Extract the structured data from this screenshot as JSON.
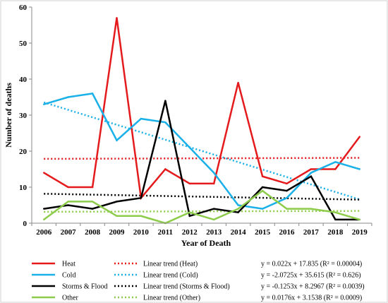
{
  "chart_data": {
    "type": "line",
    "title": "",
    "xlabel": "Year of Death",
    "ylabel": "Number of deaths",
    "x": [
      2006,
      2007,
      2008,
      2009,
      2010,
      2011,
      2012,
      2013,
      2014,
      2015,
      2016,
      2017,
      2018,
      2019
    ],
    "ylim": [
      0,
      60
    ],
    "yticks": [
      0,
      10,
      20,
      30,
      40,
      50,
      60
    ],
    "grid": false,
    "legend_position": "bottom",
    "series": [
      {
        "name": "Heat",
        "color": "#e41a1c",
        "values": [
          14,
          10,
          10,
          57,
          7,
          15,
          11,
          11,
          39,
          13,
          11,
          15,
          15,
          24
        ]
      },
      {
        "name": "Cold",
        "color": "#1ab0e8",
        "values": [
          33,
          35,
          36,
          23,
          29,
          28,
          21,
          14,
          5,
          4,
          7,
          14,
          17,
          15
        ]
      },
      {
        "name": "Storms & Flood",
        "color": "#000000",
        "values": [
          4,
          5,
          4,
          6,
          7,
          34,
          2,
          4,
          3,
          10,
          9,
          13,
          1,
          1
        ]
      },
      {
        "name": "Other",
        "color": "#8ccc4a",
        "values": [
          1,
          6,
          6,
          2,
          2,
          0,
          3,
          1,
          4,
          9,
          4,
          4,
          3,
          1
        ]
      }
    ],
    "trends": [
      {
        "name": "Linear trend (Heat)",
        "color": "#e41a1c",
        "slope": 0.022,
        "intercept": 17.835,
        "equation": "y = 0.022x + 17.835 (R² = 0.00004)"
      },
      {
        "name": "Linear trend (Cold)",
        "color": "#1ab0e8",
        "slope": -2.0725,
        "intercept": 35.615,
        "equation": "y = -2.0725x + 35.615 (R² = 0.626)"
      },
      {
        "name": "Linear trend (Storms & Flood)",
        "color": "#000000",
        "slope": -0.1253,
        "intercept": 8.2967,
        "equation": "y = -0.1253x + 8.2967 (R² = 0.0039)"
      },
      {
        "name": "Linear trend (Other)",
        "color": "#8ccc4a",
        "slope": 0.0176,
        "intercept": 3.1538,
        "equation": "y = 0.0176x + 3.1538 (R² = 0.0009)"
      }
    ]
  }
}
